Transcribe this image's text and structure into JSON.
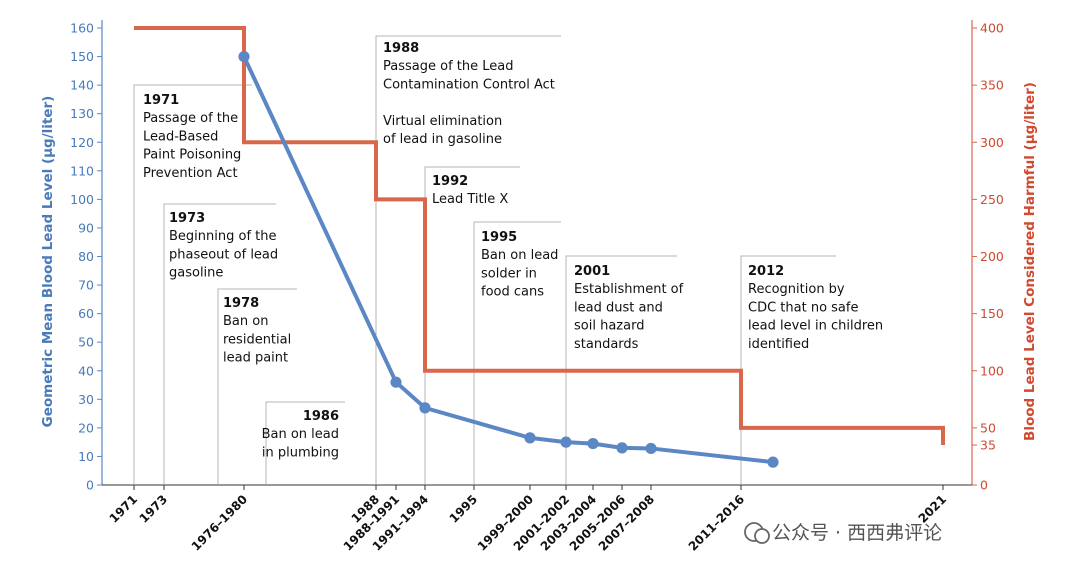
{
  "chart_data": {
    "type": "line",
    "x_categories": [
      "1971",
      "1973",
      "1976–1980",
      "1988",
      "1988–1991",
      "1991–1994",
      "1995",
      "1999–2000",
      "2001–2002",
      "2003–2004",
      "2005–2006",
      "2007–2008",
      "2011–2016",
      "2021"
    ],
    "y_left": {
      "label": "Geometric Mean Blood Lead Level (µg/liter)",
      "range": [
        0,
        160
      ],
      "ticks": [
        0,
        10,
        20,
        30,
        40,
        50,
        60,
        70,
        80,
        90,
        100,
        110,
        120,
        130,
        140,
        150,
        160
      ],
      "color": "#5b87c5"
    },
    "y_right": {
      "label": "Blood Lead Level Considered Harmful (µg/liter)",
      "range": [
        0,
        400
      ],
      "ticks": [
        "0",
        "35",
        "50",
        "100",
        "150",
        "200",
        "250",
        "300",
        "350",
        "400"
      ],
      "color": "#d9674b"
    },
    "series": [
      {
        "axis": "left",
        "style": "line-with-markers",
        "color": "#5b87c5",
        "points": [
          {
            "x": "1976–1980",
            "y": 150
          },
          {
            "x": "1988–1991",
            "y": 36
          },
          {
            "x": "1991–1994",
            "y": 27
          },
          {
            "x": "1999–2000",
            "y": 16.5
          },
          {
            "x": "2001–2002",
            "y": 15
          },
          {
            "x": "2003–2004",
            "y": 14.5
          },
          {
            "x": "2005–2006",
            "y": 13
          },
          {
            "x": "2007–2008",
            "y": 12.8
          },
          {
            "x": "2011–2016",
            "y": 8
          }
        ]
      },
      {
        "axis": "right",
        "style": "step",
        "color": "#d9674b",
        "steps": [
          {
            "from": "1971",
            "to": "1976–1980",
            "y": 400
          },
          {
            "from": "1976–1980",
            "to": "1988",
            "y": 300
          },
          {
            "from": "1988",
            "to": "1991–1994",
            "y": 250
          },
          {
            "from": "1991–1994",
            "to": "2011–2016",
            "y": 100
          },
          {
            "from": "2011–2016",
            "to": "2021",
            "y": 50
          },
          {
            "at": "2021",
            "y": 35
          }
        ]
      }
    ],
    "annotations": [
      {
        "year": "1971",
        "lines": [
          "Passage of the",
          "Lead-Based",
          "Paint Poisoning",
          "Prevention Act"
        ]
      },
      {
        "year": "1973",
        "lines": [
          "Beginning of the",
          "phaseout of lead",
          "gasoline"
        ]
      },
      {
        "year": "1978",
        "lines": [
          "Ban on",
          "residential",
          "lead paint"
        ]
      },
      {
        "year": "1986",
        "lines": [
          "Ban on lead",
          "in plumbing"
        ]
      },
      {
        "year": "1988",
        "lines": [
          "Passage of the Lead",
          "Contamination Control Act",
          "",
          "Virtual elimination",
          "of lead in gasoline"
        ]
      },
      {
        "year": "1992",
        "lines": [
          "Lead Title X"
        ]
      },
      {
        "year": "1995",
        "lines": [
          "Ban on lead",
          "solder in",
          "food cans"
        ]
      },
      {
        "year": "2001",
        "lines": [
          "Establishment of",
          "lead dust and",
          "soil hazard",
          "standards"
        ]
      },
      {
        "year": "2012",
        "lines": [
          "Recognition by",
          "CDC that no safe",
          "lead level in children",
          "identified"
        ]
      }
    ],
    "grid": false,
    "legend": "none"
  },
  "watermark": "公众号 · 西西弗评论"
}
